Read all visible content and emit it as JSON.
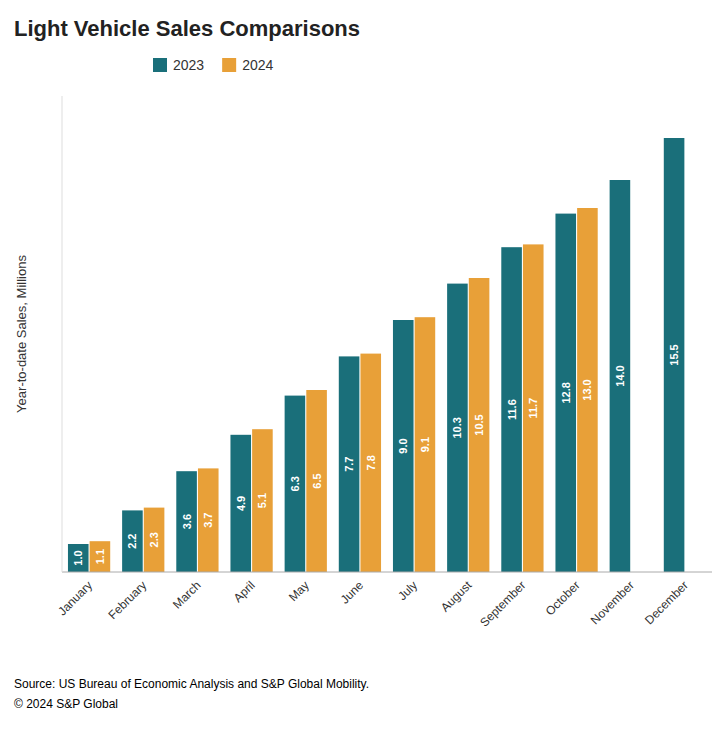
{
  "chart_data": {
    "type": "bar",
    "title": "Light Vehicle Sales Comparisons",
    "y_label": "Year-to-date Sales, Millions",
    "categories": [
      "January",
      "February",
      "March",
      "April",
      "May",
      "June",
      "July",
      "August",
      "September",
      "October",
      "November",
      "December"
    ],
    "series": [
      {
        "name": "2023",
        "color": "#1a6f7a",
        "values": [
          1.0,
          2.2,
          3.6,
          4.9,
          6.3,
          7.7,
          9.0,
          10.3,
          11.6,
          12.8,
          14.0,
          15.5
        ],
        "value_labels": [
          "1.0",
          "2.2",
          "3.6",
          "4.9",
          "6.3",
          "7.7",
          "9.0",
          "10.3",
          "11.6",
          "12.8",
          "14.0",
          "15.5"
        ]
      },
      {
        "name": "2024",
        "color": "#e8a038",
        "values": [
          1.1,
          2.3,
          3.7,
          5.1,
          6.5,
          7.8,
          9.1,
          10.5,
          11.7,
          13.0,
          null,
          null
        ],
        "value_labels": [
          "1.1",
          "2.3",
          "3.7",
          "5.1",
          "6.5",
          "7.8",
          "9.1",
          "10.5",
          "11.7",
          "13.0",
          null,
          null
        ]
      }
    ],
    "ylim": [
      0,
      17
    ],
    "grid": false,
    "legend": "upper left",
    "data_labels": true,
    "tick_labels": "x",
    "annotations": [
      "Source: US Bureau of Economic Analysis and S&P Global Mobility.",
      "© 2024 S&P Global"
    ]
  }
}
